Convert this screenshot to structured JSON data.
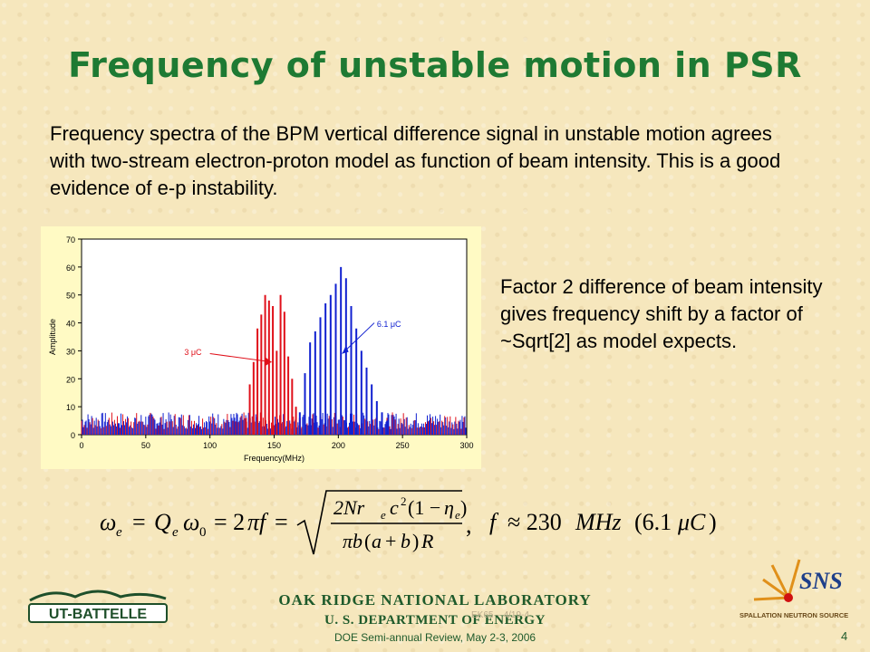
{
  "title": "Frequency of unstable motion in PSR",
  "intro_text": "Frequency spectra of the BPM vertical difference signal in unstable motion agrees with two-stream electron-proton model as function of beam intensity.  This is a good evidence of e-p instability.",
  "side_text": "Factor 2 difference of beam intensity gives frequency shift by a factor of ~Sqrt[2] as model expects.",
  "chart_data": {
    "type": "bar",
    "xlabel": "Frequency(MHz)",
    "ylabel": "Amplitude",
    "xlim": [
      0,
      300
    ],
    "ylim": [
      0,
      70
    ],
    "xticks": [
      "0",
      "50",
      "100",
      "150",
      "200",
      "250",
      "300"
    ],
    "yticks": [
      "0",
      "10",
      "20",
      "30",
      "40",
      "50",
      "60",
      "70"
    ],
    "series": [
      {
        "name": "3 μC",
        "color": "#e0101a",
        "x": [
          128,
          131,
          134,
          137,
          140,
          143,
          146,
          149,
          152,
          155,
          158,
          161,
          164,
          167,
          170
        ],
        "values": [
          6,
          18,
          26,
          38,
          43,
          50,
          48,
          46,
          30,
          50,
          44,
          28,
          20,
          10,
          6
        ]
      },
      {
        "name": "6.1 μC",
        "color": "#1020d0",
        "x": [
          170,
          174,
          178,
          182,
          186,
          190,
          194,
          198,
          202,
          206,
          210,
          214,
          218,
          222,
          226,
          230,
          234,
          238
        ],
        "values": [
          8,
          22,
          33,
          37,
          42,
          47,
          50,
          54,
          60,
          56,
          46,
          38,
          30,
          24,
          18,
          12,
          8,
          5
        ]
      }
    ],
    "annotations": [
      {
        "text": "3 μC",
        "series": "3 μC"
      },
      {
        "text": "6.1 μC",
        "series": "6.1 μC"
      }
    ]
  },
  "formula_text": "ω_e = Q_e ω_0 = 2πf = √( 2N r_e c²(1−η_e) / (πb(a+b)R) ),   f ≈ 230MHz (6.1μC)",
  "footer": {
    "org_line1": "OAK RIDGE NATIONAL LABORATORY",
    "org_line2": "U. S. DEPARTMENT OF ENERGY",
    "event": "DOE Semi-annual Review, May 2-3, 2006",
    "page_number": "4",
    "watermark": "EK65 – 4/19-4"
  },
  "logos": {
    "left": "UT-BATTELLE",
    "right_main": "SNS",
    "right_sub": "SPALLATION NEUTRON SOURCE"
  }
}
